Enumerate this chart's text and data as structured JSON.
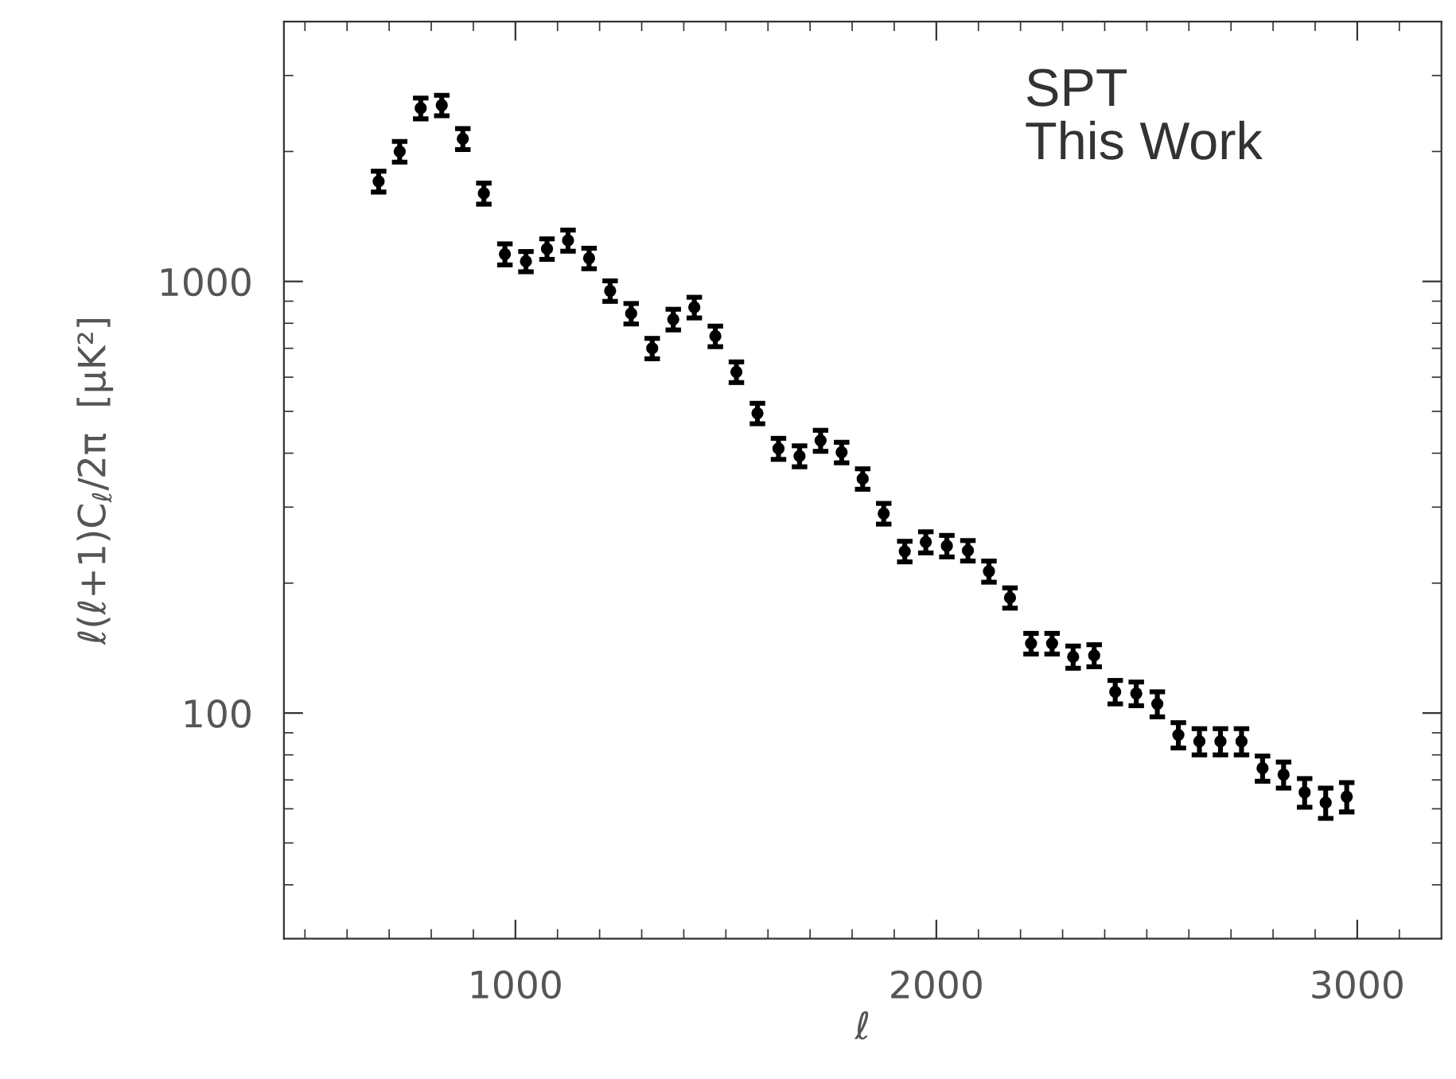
{
  "chart_data": {
    "type": "scatter",
    "xlabel": "ℓ",
    "ylabel": "ℓ(ℓ+1)C$_{ℓ}$/2π  [μK²]",
    "annotations": [
      "SPT\nThis Work"
    ],
    "x": [
      675,
      725,
      775,
      825,
      875,
      925,
      975,
      1025,
      1075,
      1125,
      1175,
      1225,
      1275,
      1325,
      1375,
      1425,
      1475,
      1525,
      1575,
      1625,
      1675,
      1725,
      1775,
      1825,
      1875,
      1925,
      1975,
      2025,
      2075,
      2125,
      2175,
      2225,
      2275,
      2325,
      2375,
      2425,
      2475,
      2525,
      2575,
      2625,
      2675,
      2725,
      2775,
      2825,
      2875,
      2925,
      2975
    ],
    "series": [
      {
        "color": "#000000",
        "values": [
          1706,
          2000,
          2520,
          2560,
          2140,
          1600,
          1157,
          1113,
          1190,
          1245,
          1132,
          951,
          843,
          700,
          817,
          871,
          747,
          617,
          495,
          410,
          394,
          428,
          402,
          349,
          290,
          237,
          249,
          244,
          238,
          213,
          185,
          145,
          145,
          135,
          136,
          112,
          111,
          105,
          89,
          86,
          86,
          86,
          74.5,
          72,
          65.5,
          62,
          64
        ],
        "errors": [
          95,
          110,
          140,
          140,
          120,
          90,
          65,
          60,
          65,
          70,
          62,
          52,
          46,
          38,
          45,
          48,
          41,
          34,
          27,
          23,
          22,
          24,
          22,
          19,
          16,
          13,
          14,
          14,
          13,
          12,
          10,
          8,
          8,
          8,
          8,
          7,
          7,
          7,
          6,
          6,
          6,
          6,
          5,
          5,
          5,
          5,
          5
        ]
      }
    ],
    "marker": "circle",
    "log": "y",
    "xlim": [
      450,
      3200
    ],
    "xticks": [
      {
        "value": 500,
        "label": null
      },
      {
        "value": 600,
        "label": null
      },
      {
        "value": 700,
        "label": null
      },
      {
        "value": 800,
        "label": null
      },
      {
        "value": 900,
        "label": null
      },
      1000,
      {
        "value": 1100,
        "label": null
      },
      {
        "value": 1200,
        "label": null
      },
      {
        "value": 1300,
        "label": null
      },
      {
        "value": 1400,
        "label": null
      },
      {
        "value": 1500,
        "label": null
      },
      {
        "value": 1600,
        "label": null
      },
      {
        "value": 1700,
        "label": null
      },
      {
        "value": 1800,
        "label": null
      },
      {
        "value": 1900,
        "label": null
      },
      2000,
      {
        "value": 2100,
        "label": null
      },
      {
        "value": 2200,
        "label": null
      },
      {
        "value": 2300,
        "label": null
      },
      {
        "value": 2400,
        "label": null
      },
      {
        "value": 2500,
        "label": null
      },
      {
        "value": 2600,
        "label": null
      },
      {
        "value": 2700,
        "label": null
      },
      {
        "value": 2800,
        "label": null
      },
      {
        "value": 2900,
        "label": null
      },
      3000,
      {
        "value": 3100,
        "label": null
      }
    ],
    "ylim": [
      30,
      4000
    ],
    "yticks": [
      {
        "value": 40,
        "label": null
      },
      {
        "value": 50,
        "label": null
      },
      {
        "value": 60,
        "label": null
      },
      {
        "value": 70,
        "label": null
      },
      {
        "value": 80,
        "label": null
      },
      {
        "value": 90,
        "label": null
      },
      100,
      {
        "value": 200,
        "label": null
      },
      {
        "value": 300,
        "label": null
      },
      {
        "value": 400,
        "label": null
      },
      {
        "value": 500,
        "label": null
      },
      {
        "value": 600,
        "label": null
      },
      {
        "value": 700,
        "label": null
      },
      {
        "value": 800,
        "label": null
      },
      {
        "value": 900,
        "label": null
      },
      1000,
      {
        "value": 2000,
        "label": null
      },
      {
        "value": 3000,
        "label": null
      }
    ],
    "grid": false
  }
}
